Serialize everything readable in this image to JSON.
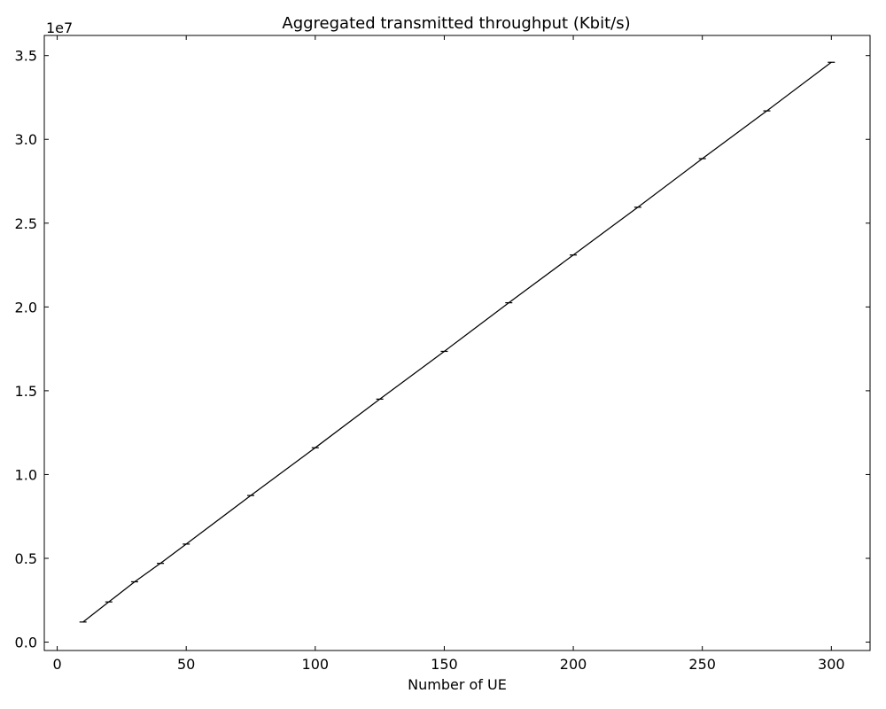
{
  "chart_data": {
    "type": "line",
    "title": "Aggregated transmitted throughput (Kbit/s)",
    "xlabel": "Number of UE",
    "ylabel": "",
    "y_offset_label": "1e7",
    "xlim": [
      -5,
      315
    ],
    "ylim": [
      -0.05,
      3.62
    ],
    "x_ticks": [
      0,
      50,
      100,
      150,
      200,
      250,
      300
    ],
    "x_tick_labels": [
      "0",
      "50",
      "100",
      "150",
      "200",
      "250",
      "300"
    ],
    "y_ticks": [
      0.0,
      0.5,
      1.0,
      1.5,
      2.0,
      2.5,
      3.0,
      3.5
    ],
    "y_tick_labels": [
      "0.0",
      "0.5",
      "1.0",
      "1.5",
      "2.0",
      "2.5",
      "3.0",
      "3.5"
    ],
    "grid": false,
    "series": [
      {
        "x": [
          10,
          20,
          30,
          40,
          50,
          75,
          100,
          125,
          150,
          175,
          200,
          225,
          250,
          275,
          300
        ],
        "y": [
          0.12,
          0.24,
          0.36,
          0.47,
          0.585,
          0.875,
          1.16,
          1.45,
          1.735,
          2.025,
          2.31,
          2.595,
          2.885,
          3.17,
          3.46
        ],
        "color": "#000000"
      }
    ]
  }
}
